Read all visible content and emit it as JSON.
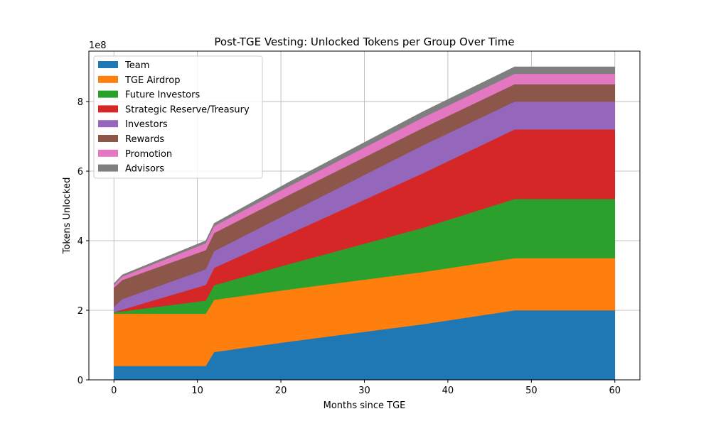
{
  "chart_data": {
    "type": "area",
    "title": "Post-TGE Vesting: Unlocked Tokens per Group Over Time",
    "xlabel": "Months since TGE",
    "ylabel": "Tokens Unlocked",
    "y_offset_label": "1e8",
    "xlim": [
      -3,
      63
    ],
    "ylim": [
      0,
      9.45
    ],
    "y_scale": 100000000,
    "grid": true,
    "legend_position": "top-left",
    "x_ticks": [
      0,
      10,
      20,
      30,
      40,
      50,
      60
    ],
    "y_ticks": [
      0,
      2,
      4,
      6,
      8
    ],
    "x": [
      0,
      1,
      11,
      12,
      21,
      37,
      48,
      60
    ],
    "series": [
      {
        "name": "Team",
        "color": "#1f77b4",
        "values": [
          0.4,
          0.4,
          0.4,
          0.8,
          1.1,
          1.6,
          2.0,
          2.0
        ]
      },
      {
        "name": "TGE Airdrop",
        "color": "#ff7f0e",
        "values": [
          1.5,
          1.5,
          1.5,
          1.5,
          1.5,
          1.5,
          1.5,
          1.5
        ]
      },
      {
        "name": "Future Investors",
        "color": "#2ca02c",
        "values": [
          0.05,
          0.07,
          0.38,
          0.42,
          0.73,
          1.27,
          1.7,
          1.7
        ]
      },
      {
        "name": "Strategic Reserve/Treasury",
        "color": "#d62728",
        "values": [
          0.0,
          0.05,
          0.45,
          0.5,
          0.87,
          1.57,
          2.0,
          2.0
        ]
      },
      {
        "name": "Investors",
        "color": "#9467bd",
        "values": [
          0.15,
          0.3,
          0.45,
          0.48,
          0.6,
          0.8,
          0.8,
          0.8
        ]
      },
      {
        "name": "Rewards",
        "color": "#8c564b",
        "values": [
          0.55,
          0.55,
          0.55,
          0.52,
          0.52,
          0.5,
          0.5,
          0.5
        ]
      },
      {
        "name": "Promotion",
        "color": "#e377c2",
        "values": [
          0.08,
          0.1,
          0.2,
          0.2,
          0.25,
          0.3,
          0.3,
          0.3
        ]
      },
      {
        "name": "Advisors",
        "color": "#7f7f7f",
        "values": [
          0.04,
          0.05,
          0.07,
          0.08,
          0.12,
          0.17,
          0.2,
          0.2
        ]
      }
    ]
  }
}
